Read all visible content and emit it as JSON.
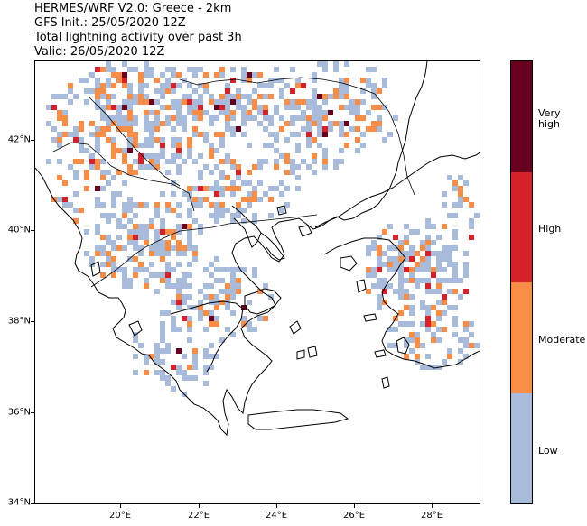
{
  "header": {
    "model_line": "HERMES/WRF V2.0: Greece - 2km",
    "init_line": "GFS Init.: 25/05/2020 12Z",
    "field_line": "Total lightning activity over past 3h",
    "valid_line": "Valid: 26/05/2020 12Z"
  },
  "axes": {
    "lat_labels": [
      "42°N",
      "40°N",
      "38°N",
      "36°N",
      "34°N"
    ],
    "lon_labels": [
      "20°E",
      "22°E",
      "24°E",
      "26°E",
      "28°E"
    ]
  },
  "legend": {
    "levels": [
      {
        "label": "Very high",
        "color": "#67001f"
      },
      {
        "label": "High",
        "color": "#d6202a"
      },
      {
        "label": "Moderate",
        "color": "#f88d48"
      },
      {
        "label": "Low",
        "color": "#a9bbda"
      }
    ]
  },
  "colors": {
    "low": "#a9bbda",
    "moderate": "#f88d48",
    "high": "#d6202a",
    "very_high": "#67001f",
    "coastline": "#000000"
  }
}
